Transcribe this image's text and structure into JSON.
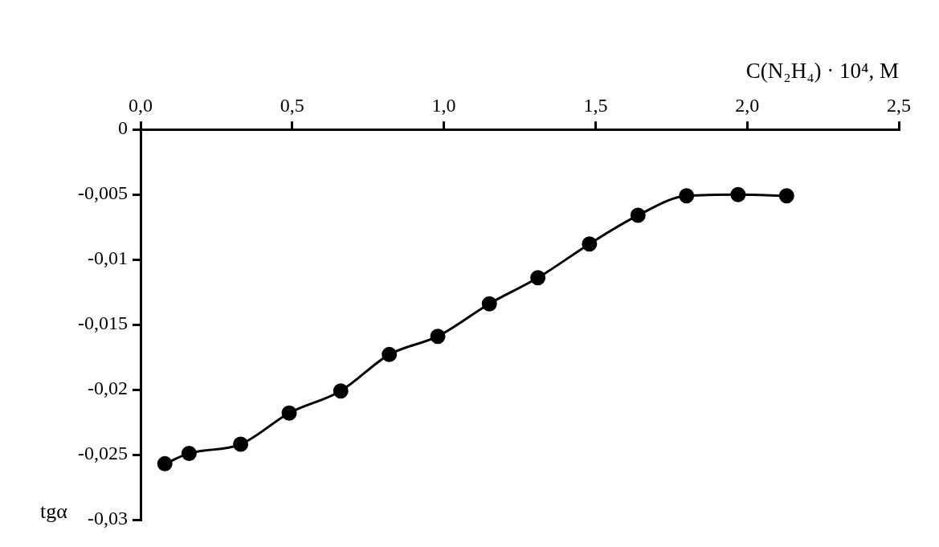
{
  "chart_data": {
    "type": "line",
    "xlabel": "C(N₂H₄) · 10⁴, M",
    "ylabel": "tgα",
    "x": [
      0.08,
      0.16,
      0.33,
      0.49,
      0.66,
      0.82,
      0.98,
      1.15,
      1.31,
      1.48,
      1.64,
      1.8,
      1.97,
      2.13
    ],
    "series": [
      {
        "color": "#000000",
        "values": [
          -0.0257,
          -0.0249,
          -0.0242,
          -0.0218,
          -0.0201,
          -0.0173,
          -0.0159,
          -0.0134,
          -0.0114,
          -0.0088,
          -0.0066,
          -0.0051,
          -0.005,
          -0.0051
        ]
      }
    ],
    "xlim": [
      0,
      2.5
    ],
    "ylim": [
      -0.03,
      0
    ],
    "xticks": [
      {
        "value": 0,
        "label": "0,0"
      },
      {
        "value": 0.5,
        "label": "0,5"
      },
      {
        "value": 1,
        "label": "1,0"
      },
      {
        "value": 1.5,
        "label": "1,5"
      },
      {
        "value": 2,
        "label": "2,0"
      },
      {
        "value": 2.5,
        "label": "2,5"
      }
    ],
    "yticks": [
      0,
      {
        "value": -0.005,
        "label": "-0,005"
      },
      {
        "value": -0.01,
        "label": "-0,01"
      },
      {
        "value": -0.015,
        "label": "-0,015"
      },
      {
        "value": -0.02,
        "label": "-0,02"
      },
      {
        "value": -0.025,
        "label": "-0,025"
      },
      {
        "value": -0.03,
        "label": "-0,03"
      }
    ],
    "grid": false,
    "marker": "circle",
    "line_style": "solid"
  }
}
